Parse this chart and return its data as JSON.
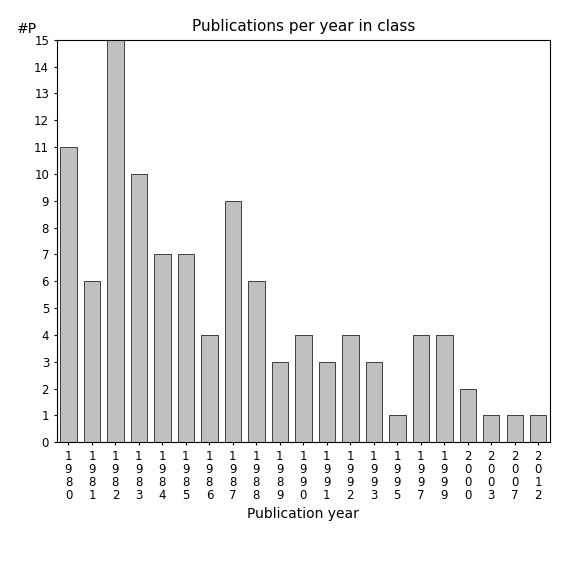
{
  "title": "Publications per year in class",
  "xlabel": "Publication year",
  "ylabel": "#P",
  "bar_color": "#c0c0c0",
  "bar_edge_color": "#000000",
  "categories": [
    "1980",
    "1981",
    "1982",
    "1983",
    "1984",
    "1985",
    "1986",
    "1987",
    "1988",
    "1989",
    "1990",
    "1991",
    "1992",
    "1993",
    "1995",
    "1997",
    "1999",
    "2000",
    "2003",
    "2007",
    "2012"
  ],
  "values": [
    11,
    6,
    15,
    10,
    7,
    7,
    4,
    9,
    6,
    3,
    4,
    3,
    4,
    3,
    1,
    4,
    4,
    2,
    1,
    1,
    1
  ],
  "ylim": [
    0,
    15
  ],
  "yticks": [
    0,
    1,
    2,
    3,
    4,
    5,
    6,
    7,
    8,
    9,
    10,
    11,
    12,
    13,
    14,
    15
  ],
  "figsize": [
    5.67,
    5.67
  ],
  "dpi": 100,
  "title_fontsize": 11,
  "axis_label_fontsize": 10,
  "tick_fontsize": 8.5
}
